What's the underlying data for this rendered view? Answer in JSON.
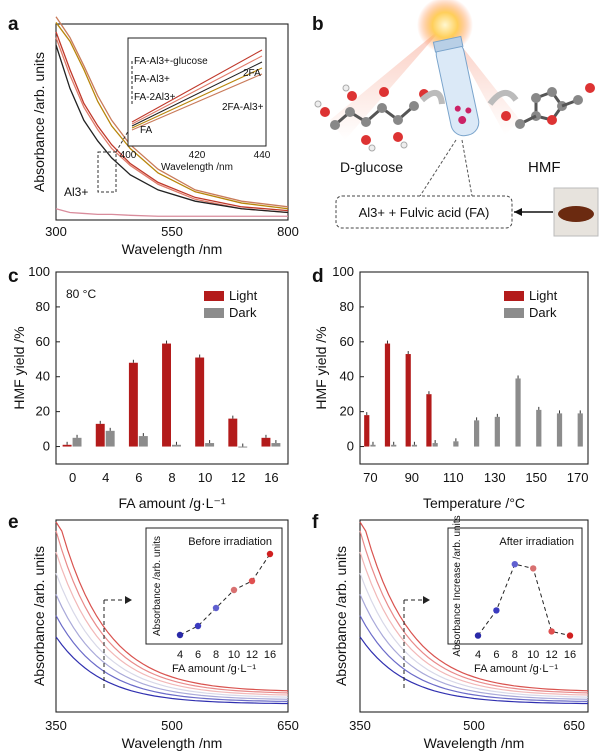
{
  "panel_labels": [
    "a",
    "b",
    "c",
    "d",
    "e",
    "f"
  ],
  "scheme": {
    "left_label": "D-glucose",
    "right_label": "HMF",
    "catalyst_label": "Al3+ + Fulvic acid (FA)"
  },
  "chart_data": [
    {
      "panel": "a",
      "type": "line",
      "xlabel": "Wavelength /nm",
      "ylabel": "Absorbance /arb. units",
      "xlim": [
        300,
        800
      ],
      "xticks": [
        "300",
        "550",
        "800"
      ],
      "annotations": [
        "Al3+"
      ],
      "series": [
        {
          "color": "#c0392b",
          "x": [
            300,
            330,
            360,
            390,
            420,
            460,
            520,
            600,
            700,
            800
          ],
          "y": [
            1.0,
            0.8,
            0.62,
            0.5,
            0.4,
            0.3,
            0.2,
            0.12,
            0.07,
            0.05
          ]
        },
        {
          "color": "#e07b6a",
          "x": [
            300,
            330,
            360,
            390,
            420,
            460,
            520,
            600,
            700,
            800
          ],
          "y": [
            0.97,
            0.77,
            0.6,
            0.48,
            0.38,
            0.29,
            0.19,
            0.11,
            0.06,
            0.04
          ]
        },
        {
          "color": "#222222",
          "x": [
            300,
            330,
            360,
            390,
            420,
            460,
            520,
            600,
            700,
            800
          ],
          "y": [
            0.93,
            0.7,
            0.53,
            0.42,
            0.33,
            0.24,
            0.16,
            0.1,
            0.06,
            0.04
          ]
        },
        {
          "color": "#b8860b",
          "x": [
            300,
            330,
            360,
            390,
            420,
            460,
            520,
            600,
            700,
            800
          ],
          "y": [
            1.05,
            0.95,
            0.8,
            0.63,
            0.5,
            0.38,
            0.25,
            0.15,
            0.09,
            0.06
          ]
        },
        {
          "color": "#c97b5a",
          "x": [
            300,
            330,
            360,
            390,
            420,
            460,
            520,
            600,
            700,
            800
          ],
          "y": [
            1.08,
            0.97,
            0.82,
            0.66,
            0.53,
            0.4,
            0.27,
            0.16,
            0.1,
            0.07
          ]
        },
        {
          "color": "#d98c9c",
          "x": [
            300,
            330,
            360,
            390,
            420,
            460,
            520,
            600,
            700,
            800
          ],
          "y": [
            0.06,
            0.04,
            0.035,
            0.03,
            0.03,
            0.025,
            0.02,
            0.02,
            0.02,
            0.02
          ]
        }
      ],
      "inset": {
        "xlabel": "Wavelength /nm",
        "xlim": [
          400,
          440
        ],
        "xticks": [
          "400",
          "420",
          "440"
        ],
        "legend": [
          "FA-Al3+-glucose",
          "FA-Al3+",
          "FA-2Al3+",
          "FA"
        ],
        "curve_labels": [
          "2FA",
          "2FA-Al3+"
        ]
      }
    },
    {
      "panel": "c",
      "type": "bar",
      "title": "80 °C",
      "categories": [
        "0",
        "4",
        "6",
        "8",
        "10",
        "12",
        "16"
      ],
      "xlabel": "FA amount /g·L⁻¹",
      "ylabel": "HMF yield /%",
      "ylim": [
        -10,
        100
      ],
      "yticks": [
        "0",
        "20",
        "40",
        "60",
        "80",
        "100"
      ],
      "series": [
        {
          "name": "Light",
          "color": "#b31b1b",
          "values": [
            1,
            13,
            48,
            59,
            51,
            16,
            5
          ]
        },
        {
          "name": "Dark",
          "color": "#8c8c8c",
          "values": [
            5,
            9,
            6,
            1,
            2,
            0,
            2
          ]
        }
      ]
    },
    {
      "panel": "d",
      "type": "bar",
      "xlabel": "Temperature /°C",
      "ylabel": "HMF yield /%",
      "ylim": [
        -10,
        100
      ],
      "yticks": [
        "0",
        "20",
        "40",
        "60",
        "80",
        "100"
      ],
      "xticks": [
        "70",
        "90",
        "110",
        "130",
        "150",
        "170"
      ],
      "categories": [
        "70",
        "80",
        "90",
        "100",
        "110",
        "120",
        "130",
        "140",
        "150",
        "160",
        "170"
      ],
      "series": [
        {
          "name": "Light",
          "color": "#b31b1b",
          "values": [
            18,
            59,
            53,
            30,
            null,
            null,
            null,
            null,
            null,
            null,
            null
          ]
        },
        {
          "name": "Dark",
          "color": "#8c8c8c",
          "values": [
            1,
            1,
            1,
            2,
            3,
            15,
            17,
            39,
            21,
            19,
            19
          ]
        }
      ]
    },
    {
      "panel": "e",
      "type": "line",
      "xlabel": "Wavelength /nm",
      "ylabel": "Absorbance /arb. units",
      "xlim": [
        350,
        650
      ],
      "xticks": [
        "350",
        "500",
        "650"
      ],
      "inset": {
        "title": "Before irradiation",
        "type": "scatter",
        "xlabel": "FA amount /g·L⁻¹",
        "ylabel": "Absorbance /arb. units",
        "xticks": [
          "4",
          "6",
          "8",
          "10",
          "12",
          "16"
        ],
        "x": [
          4,
          6,
          8,
          10,
          12,
          16
        ],
        "y": [
          0.1,
          0.2,
          0.4,
          0.6,
          0.7,
          1.0
        ]
      }
    },
    {
      "panel": "f",
      "type": "line",
      "xlabel": "Wavelength /nm",
      "ylabel": "Absorbance /arb. units",
      "xlim": [
        350,
        650
      ],
      "xticks": [
        "350",
        "500",
        "650"
      ],
      "inset": {
        "title": "After irradiation",
        "type": "scatter",
        "xlabel": "FA amount /g·L⁻¹",
        "ylabel": "Absorbance Increase /arb. units",
        "xticks": [
          "4",
          "6",
          "8",
          "10",
          "12",
          "16"
        ],
        "x": [
          4,
          6,
          8,
          10,
          12,
          16
        ],
        "y": [
          0.1,
          0.4,
          0.95,
          0.9,
          0.15,
          0.1
        ]
      }
    }
  ]
}
